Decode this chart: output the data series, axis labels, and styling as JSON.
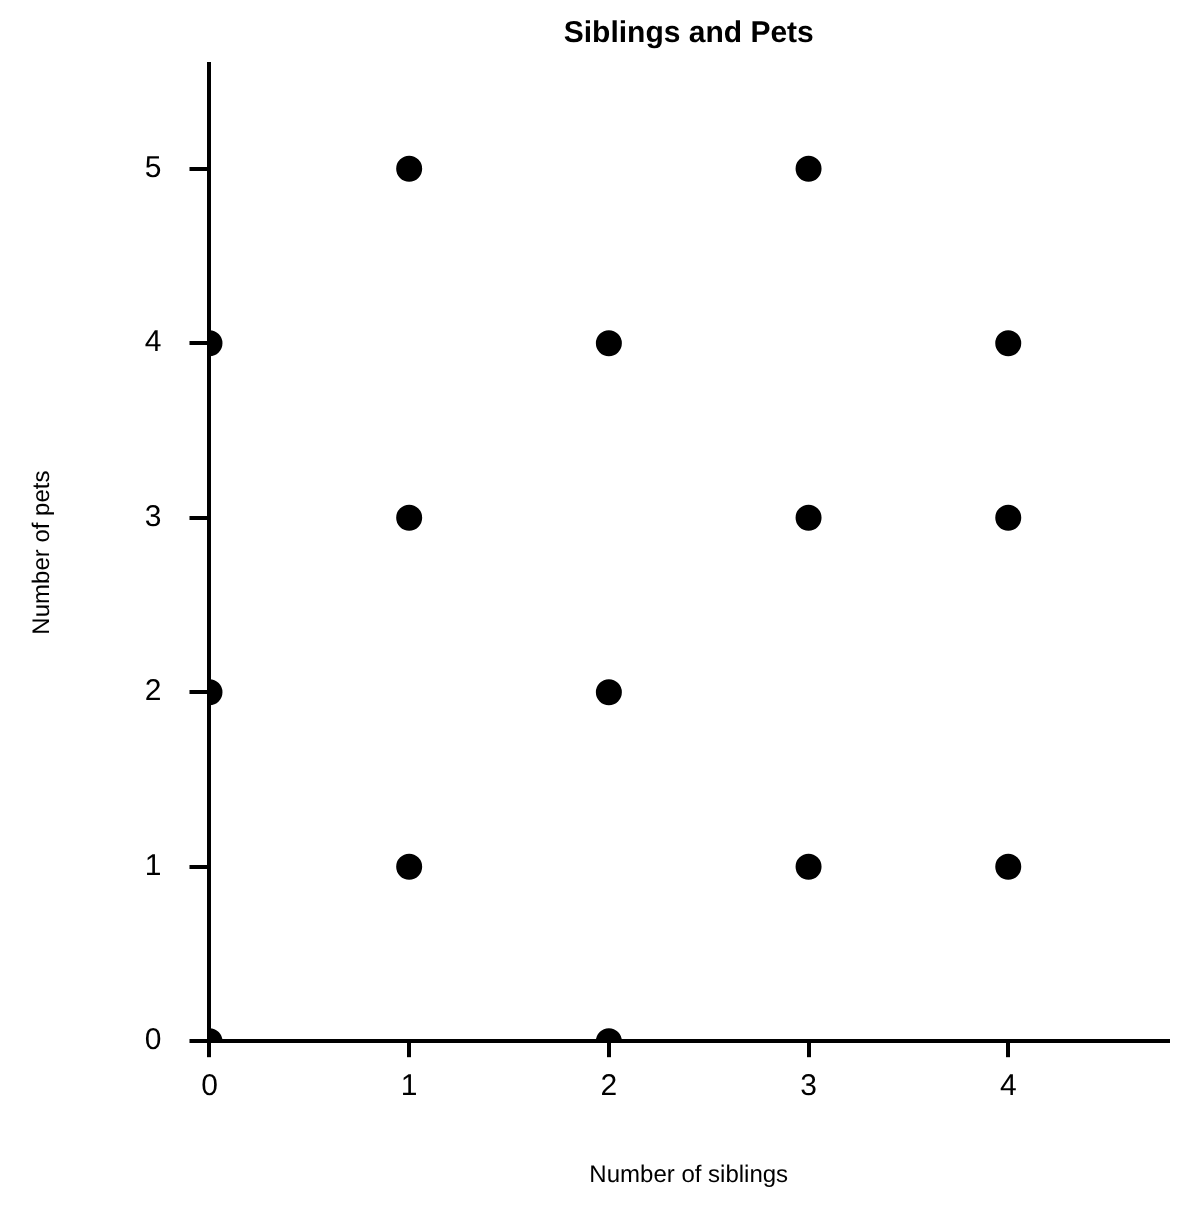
{
  "chart_data": {
    "type": "scatter",
    "title": "Siblings and Pets",
    "xlabel": "Number of siblings",
    "ylabel": "Number of pets",
    "x": [
      0,
      0,
      0,
      1,
      1,
      1,
      2,
      2,
      2,
      3,
      3,
      3,
      4,
      4,
      4
    ],
    "series": [
      {
        "color": "#000000",
        "values": [
          0,
          2,
          4,
          1,
          3,
          5,
          0,
          2,
          4,
          1,
          3,
          5,
          1,
          3,
          4
        ]
      }
    ],
    "xlim": [
      0,
      4.8
    ],
    "ylim": [
      0,
      5.6
    ],
    "xticks": [
      0,
      1,
      2,
      3,
      4
    ],
    "yticks": [
      0,
      1,
      2,
      3,
      4,
      5
    ],
    "grid": false,
    "legend": false,
    "marker": "circle"
  }
}
